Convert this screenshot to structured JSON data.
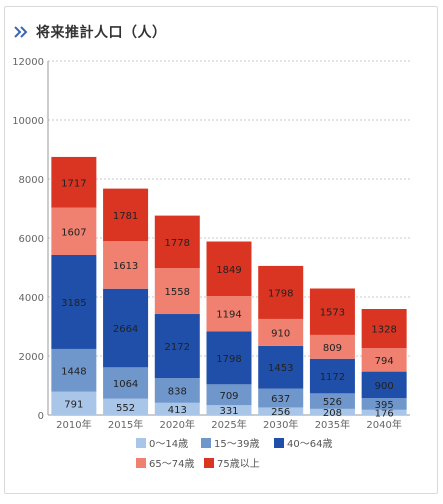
{
  "header": {
    "title": "将来推計人口（人）",
    "icon": "double-chevron-right-icon"
  },
  "chart_data": {
    "type": "bar",
    "stacked": true,
    "categories": [
      "2010年",
      "2015年",
      "2020年",
      "2025年",
      "2030年",
      "2035年",
      "2040年"
    ],
    "series": [
      {
        "name": "0〜14歳",
        "color": "#a9c6e8",
        "values": [
          791,
          552,
          413,
          331,
          256,
          208,
          176
        ]
      },
      {
        "name": "15〜39歳",
        "color": "#6f97cb",
        "values": [
          1448,
          1064,
          838,
          709,
          637,
          526,
          395
        ]
      },
      {
        "name": "40〜64歳",
        "color": "#1f4fa8",
        "values": [
          3185,
          2664,
          2172,
          1798,
          1453,
          1172,
          900
        ]
      },
      {
        "name": "65〜74歳",
        "color": "#f08070",
        "values": [
          1607,
          1613,
          1558,
          1194,
          910,
          809,
          794
        ]
      },
      {
        "name": "75歳以上",
        "color": "#d93522",
        "values": [
          1717,
          1781,
          1778,
          1849,
          1798,
          1573,
          1328
        ]
      }
    ],
    "yticks": [
      0,
      2000,
      4000,
      6000,
      8000,
      10000,
      12000
    ],
    "ylim": [
      0,
      12000
    ],
    "legend_position": "bottom",
    "grid": true
  }
}
